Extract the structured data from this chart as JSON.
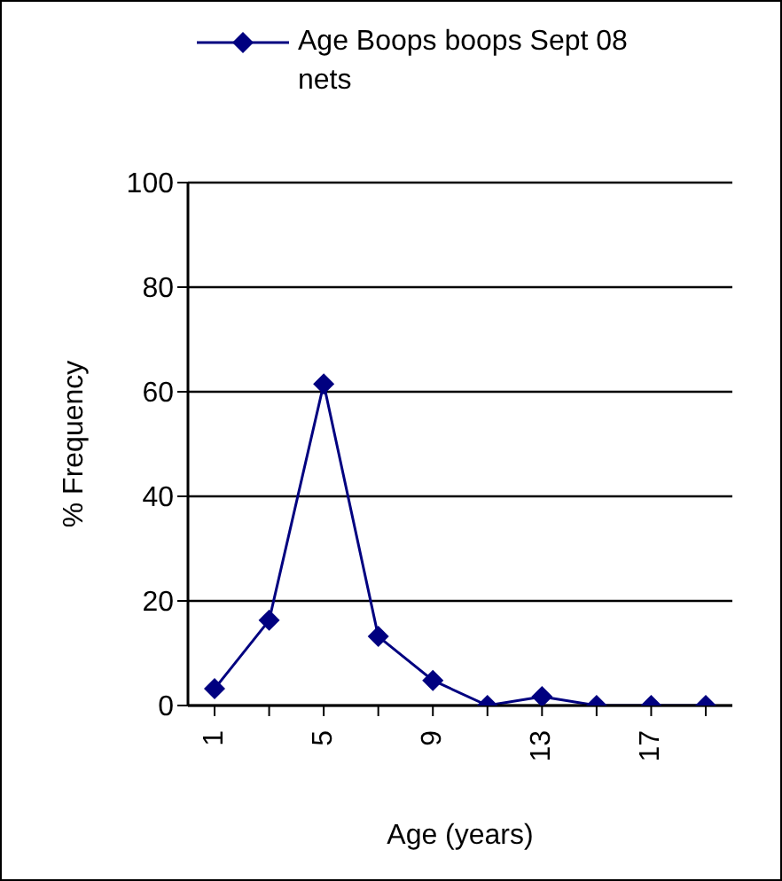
{
  "chart_data": {
    "type": "line",
    "xlabel": "Age (years)",
    "ylabel": "% Frequency",
    "categories": [
      "1",
      null,
      "5",
      null,
      "9",
      null,
      "13",
      null,
      "17",
      null
    ],
    "series": [
      {
        "name": "Age Boops boops Sept 08 nets",
        "color": "#000080",
        "values": [
          3.2,
          16.3,
          61.5,
          13.2,
          4.8,
          0,
          1.7,
          0,
          0,
          0
        ]
      }
    ],
    "ylim": [
      0,
      100
    ],
    "yticks": [
      0,
      20,
      40,
      60,
      80,
      100
    ],
    "grid": "y",
    "legend": "top",
    "marker": "diamond",
    "line_style": "solid"
  }
}
